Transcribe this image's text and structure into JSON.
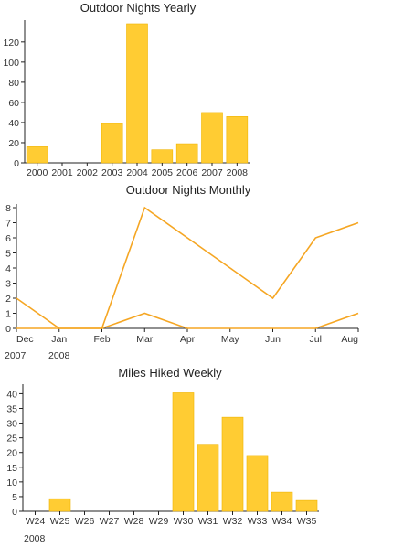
{
  "colors": {
    "bar": "#ffcc33",
    "bar_edge": "#f0b400",
    "line": "#f5a623",
    "axis": "#222222",
    "text": "#333333"
  },
  "chart_data": [
    {
      "type": "bar",
      "title": "Outdoor Nights Yearly",
      "categories": [
        "2000",
        "2001",
        "2002",
        "2003",
        "2004",
        "2005",
        "2006",
        "2007",
        "2008"
      ],
      "values": [
        16,
        0,
        0,
        39,
        138,
        13,
        19,
        50,
        46
      ],
      "ylim": [
        0,
        138
      ],
      "yticks": [
        0,
        20,
        40,
        60,
        80,
        100,
        120
      ],
      "xlabel": "",
      "ylabel": "",
      "grid": false
    },
    {
      "type": "line",
      "title": "Outdoor Nights Monthly",
      "categories": [
        "Dec",
        "Jan",
        "Feb",
        "Mar",
        "Apr",
        "May",
        "Jun",
        "Jul",
        "Aug"
      ],
      "year_labels": [
        "2007",
        "2008"
      ],
      "series": [
        {
          "values": [
            2,
            0,
            0,
            8,
            6,
            4,
            2,
            6,
            7
          ]
        },
        {
          "values": [
            0,
            0,
            0,
            1,
            0,
            0,
            0,
            0,
            1
          ]
        }
      ],
      "ylim": [
        0,
        8
      ],
      "yticks": [
        0,
        1,
        2,
        3,
        4,
        5,
        6,
        7,
        8
      ],
      "xlabel": "",
      "ylabel": "",
      "grid": false
    },
    {
      "type": "bar",
      "title": "Miles Hiked Weekly",
      "categories": [
        "W24",
        "W25",
        "W26",
        "W27",
        "W28",
        "W29",
        "W30",
        "W31",
        "W32",
        "W33",
        "W34",
        "W35"
      ],
      "values": [
        0,
        4.3,
        0,
        0,
        0,
        0,
        40.3,
        22.8,
        32,
        19,
        6.5,
        3.7
      ],
      "year_label": "2008",
      "ylim": [
        0,
        42
      ],
      "yticks": [
        0,
        5,
        10,
        15,
        20,
        25,
        30,
        35,
        40
      ],
      "xlabel": "",
      "ylabel": "",
      "grid": false
    }
  ]
}
